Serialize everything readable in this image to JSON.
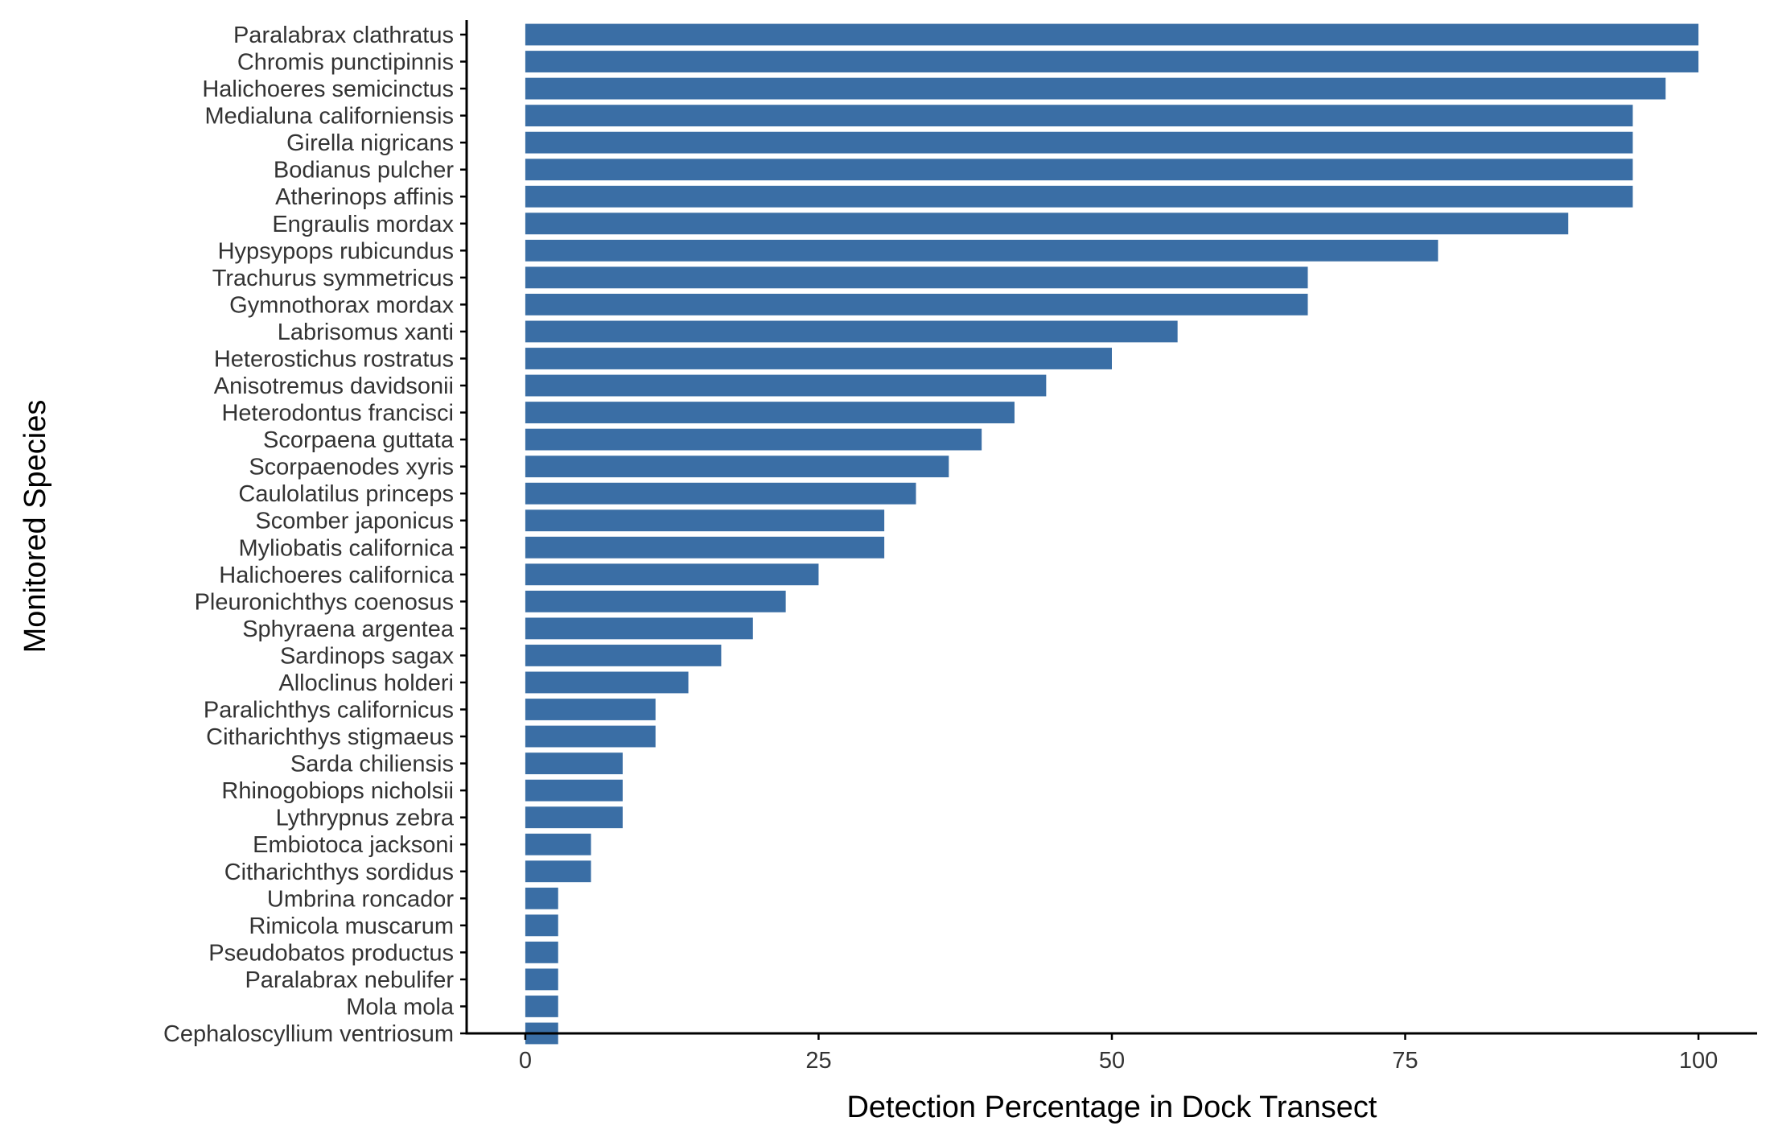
{
  "chart_data": {
    "type": "bar",
    "orientation": "horizontal",
    "xlabel": "Detection Percentage in Dock Transect",
    "ylabel": "Monitored Species",
    "xlim": [
      -5,
      105
    ],
    "xticks": [
      0,
      25,
      50,
      75,
      100
    ],
    "grid": false,
    "colors": {
      "bar": "#3a6ea5"
    },
    "categories": [
      "Paralabrax clathratus",
      "Chromis punctipinnis",
      "Halichoeres semicinctus",
      "Medialuna californiensis",
      "Girella nigricans",
      "Bodianus pulcher",
      "Atherinops affinis",
      "Engraulis mordax",
      "Hypsypops rubicundus",
      "Trachurus symmetricus",
      "Gymnothorax mordax",
      "Labrisomus xanti",
      "Heterostichus rostratus",
      "Anisotremus davidsonii",
      "Heterodontus francisci",
      "Scorpaena guttata",
      "Scorpaenodes xyris",
      "Caulolatilus princeps",
      "Scomber japonicus",
      "Myliobatis californica",
      "Halichoeres californica",
      "Pleuronichthys coenosus",
      "Sphyraena argentea",
      "Sardinops sagax",
      "Alloclinus holderi",
      "Paralichthys californicus",
      "Citharichthys stigmaeus",
      "Sarda chiliensis",
      "Rhinogobiops nicholsii",
      "Lythrypnus zebra",
      "Embiotoca jacksoni",
      "Citharichthys sordidus",
      "Umbrina roncador",
      "Rimicola muscarum",
      "Pseudobatos productus",
      "Paralabrax nebulifer",
      "Mola mola",
      "Cephaloscyllium ventriosum"
    ],
    "values": [
      100,
      100,
      97.2,
      94.4,
      94.4,
      94.4,
      94.4,
      88.9,
      77.8,
      66.7,
      66.7,
      55.6,
      50.0,
      44.4,
      41.7,
      38.9,
      36.1,
      33.3,
      30.6,
      30.6,
      25.0,
      22.2,
      19.4,
      16.7,
      13.9,
      11.1,
      11.1,
      8.3,
      8.3,
      8.3,
      5.6,
      5.6,
      2.8,
      2.8,
      2.8,
      2.8,
      2.8,
      2.8
    ]
  }
}
